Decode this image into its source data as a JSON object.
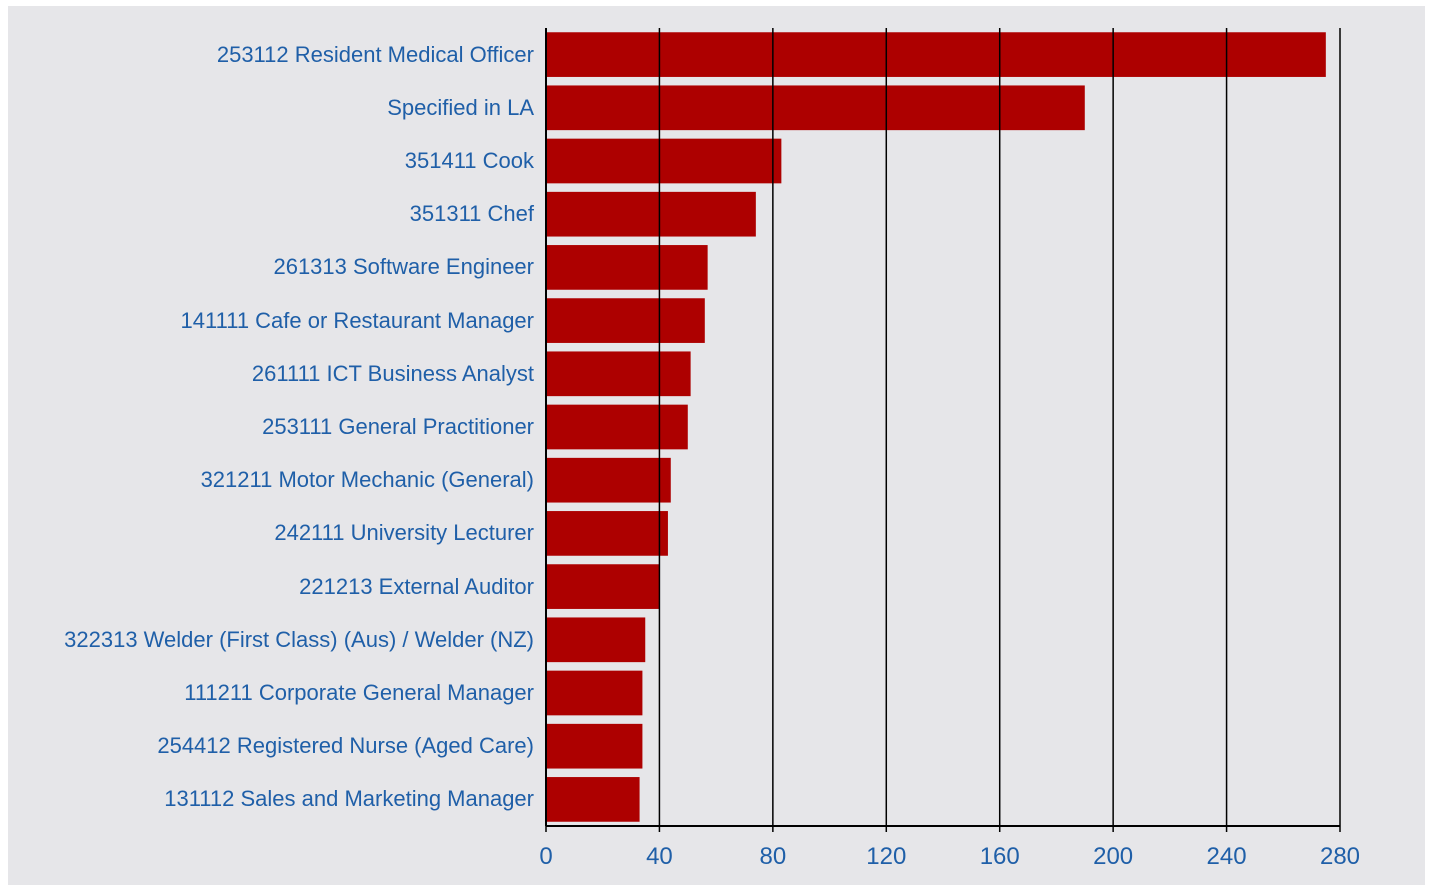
{
  "chart_data": {
    "type": "bar",
    "orientation": "horizontal",
    "categories": [
      "253112 Resident Medical Officer",
      "Specified in LA",
      "351411 Cook",
      "351311 Chef",
      "261313 Software Engineer",
      "141111 Cafe or Restaurant Manager",
      "261111 ICT Business Analyst",
      "253111 General Practitioner",
      "321211 Motor Mechanic (General)",
      "242111 University Lecturer",
      "221213 External Auditor",
      "322313 Welder (First Class) (Aus) / Welder (NZ)",
      "111211 Corporate General Manager",
      "254412 Registered Nurse (Aged Care)",
      "131112 Sales and Marketing Manager"
    ],
    "values": [
      275,
      190,
      83,
      74,
      57,
      56,
      51,
      50,
      44,
      43,
      40,
      35,
      34,
      34,
      33
    ],
    "color": "#ad0000",
    "xlim": [
      0,
      280
    ],
    "xticks": [
      0,
      40,
      80,
      120,
      160,
      200,
      240,
      280
    ],
    "grid": true
  }
}
